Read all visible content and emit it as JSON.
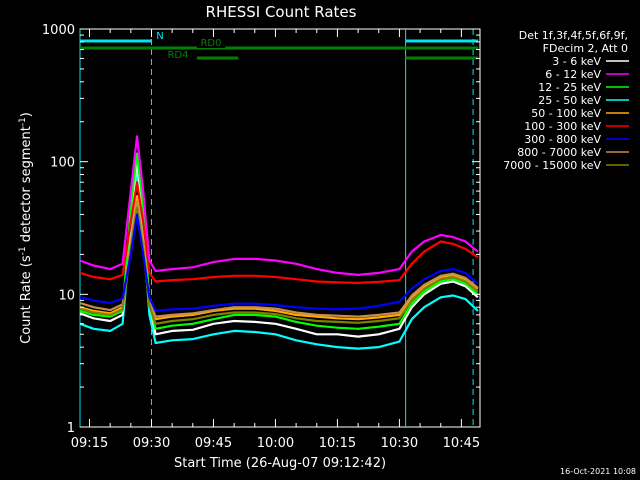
{
  "chart_data": {
    "type": "line",
    "title": "RHESSI Count Rates",
    "xlabel": "Start Time (26-Aug-07 09:12:42)",
    "ylabel_prefix": "Count Rate (s",
    "ylabel_sup": "-1",
    "ylabel_suffix": " detector segment",
    "ylabel_sup2": "-1",
    "ylabel_close": ")",
    "y_scale": "log",
    "ylim": [
      1,
      1000
    ],
    "xlim": [
      "09:12:42",
      "10:49:30"
    ],
    "x_ticks": [
      "09:15",
      "09:30",
      "09:45",
      "10:00",
      "10:15",
      "10:30",
      "10:45"
    ],
    "y_ticks": [
      {
        "value": 1,
        "label": "1"
      },
      {
        "value": 10,
        "label": "10"
      },
      {
        "value": 100,
        "label": "100"
      },
      {
        "value": 1000,
        "label": "1000"
      }
    ],
    "legend_title_1": "Det 1f,3f,4f,5f,6f,9f,",
    "legend_title_2": "FDecim 2, Att 0",
    "legend_position": "right",
    "timestamp": "16-Oct-2021 10:08",
    "flags": [
      {
        "label": "N",
        "color": "#00e5ee",
        "segments": [
          [
            "09:12:42",
            "09:30:00"
          ],
          [
            "10:31:30",
            "10:49:00"
          ]
        ]
      },
      {
        "label": "RD0",
        "color": "#008000",
        "segments": [
          [
            "09:12:42",
            "10:31:30"
          ],
          [
            "10:31:30",
            "10:49:00"
          ]
        ]
      },
      {
        "label": "RD4",
        "color": "#008000",
        "segments": [
          [
            "09:41:00",
            "09:51:00"
          ],
          [
            "10:31:30",
            "10:49:00"
          ]
        ]
      }
    ],
    "vertical_markers": [
      {
        "time": "09:12:42",
        "style": "solid"
      },
      {
        "time": "09:30:00",
        "style": "dashed"
      },
      {
        "time": "10:31:30",
        "style": "solid"
      },
      {
        "time": "10:47:50",
        "style": "dashed"
      }
    ],
    "x": [
      "09:12:42",
      "09:16:00",
      "09:20:00",
      "09:23:00",
      "09:25:00",
      "09:26:30",
      "09:28:00",
      "09:29:30",
      "09:31:00",
      "09:35:00",
      "09:40:00",
      "09:45:00",
      "09:50:00",
      "09:55:00",
      "10:00:00",
      "10:05:00",
      "10:10:00",
      "10:15:00",
      "10:20:00",
      "10:25:00",
      "10:30:00",
      "10:33:00",
      "10:36:00",
      "10:40:00",
      "10:43:00",
      "10:46:00",
      "10:49:00"
    ],
    "series": [
      {
        "name": "3 - 6 keV",
        "color": "#ffffff",
        "values": [
          7.2,
          6.6,
          6.3,
          7.0,
          40,
          100,
          40,
          8.5,
          5.0,
          5.3,
          5.4,
          6.0,
          6.3,
          6.2,
          6.0,
          5.5,
          5.0,
          5.0,
          4.8,
          5.0,
          5.5,
          8.0,
          10,
          12,
          12.5,
          11.5,
          9.5
        ]
      },
      {
        "name": "6 - 12 keV",
        "color": "#ff00ff",
        "values": [
          18,
          16.5,
          15.5,
          17,
          60,
          155,
          60,
          18,
          15,
          15.5,
          16,
          17.5,
          18.5,
          18.5,
          18,
          17,
          15.5,
          14.5,
          14,
          14.5,
          15.5,
          21,
          25,
          28,
          27,
          25,
          21
        ]
      },
      {
        "name": "12 - 25 keV",
        "color": "#00ff00",
        "values": [
          7.5,
          7.0,
          6.8,
          7.5,
          45,
          115,
          45,
          8.5,
          5.5,
          5.8,
          6.0,
          6.5,
          7.0,
          7.0,
          6.8,
          6.2,
          5.8,
          5.6,
          5.5,
          5.7,
          6.0,
          8.5,
          10.5,
          12.5,
          13,
          12,
          10
        ]
      },
      {
        "name": "25 - 50 keV",
        "color": "#00ffff",
        "values": [
          6.0,
          5.5,
          5.3,
          6.0,
          30,
          80,
          30,
          7.0,
          4.3,
          4.5,
          4.6,
          5.0,
          5.3,
          5.2,
          5.0,
          4.5,
          4.2,
          4.0,
          3.9,
          4.0,
          4.4,
          6.5,
          8.0,
          9.5,
          9.8,
          9.2,
          7.5
        ]
      },
      {
        "name": "50 - 100 keV",
        "color": "#ffaa00",
        "values": [
          8.0,
          7.5,
          7.2,
          8.0,
          25,
          55,
          25,
          9.0,
          6.5,
          6.8,
          7.0,
          7.5,
          7.8,
          7.8,
          7.5,
          7.0,
          6.8,
          6.6,
          6.5,
          6.7,
          7.0,
          9.5,
          11.5,
          13.5,
          14,
          13,
          11
        ]
      },
      {
        "name": "100 - 300 keV",
        "color": "#ff0000",
        "values": [
          14.5,
          13.5,
          13.0,
          14,
          35,
          70,
          35,
          14.5,
          12.5,
          12.8,
          13,
          13.5,
          13.8,
          13.8,
          13.5,
          13,
          12.5,
          12.3,
          12.2,
          12.4,
          12.8,
          17,
          21,
          25,
          24,
          22,
          19
        ]
      },
      {
        "name": "300 - 800 keV",
        "color": "#0000ff",
        "values": [
          9.5,
          9.0,
          8.6,
          9.3,
          20,
          40,
          20,
          9.5,
          7.5,
          7.7,
          7.8,
          8.2,
          8.5,
          8.5,
          8.3,
          8.0,
          7.8,
          7.7,
          7.8,
          8.2,
          8.8,
          11,
          13,
          15,
          15.5,
          14.5,
          12
        ]
      },
      {
        "name": "800 - 7000 keV",
        "color": "#c88c50",
        "values": [
          8.6,
          8.0,
          7.6,
          8.4,
          24,
          50,
          24,
          8.8,
          6.8,
          7.0,
          7.2,
          7.6,
          8.0,
          8.0,
          7.8,
          7.3,
          7.0,
          6.9,
          6.8,
          7.0,
          7.3,
          9.8,
          11.8,
          13.8,
          14.3,
          13.3,
          11.2
        ]
      },
      {
        "name": "7000 - 15000 keV",
        "color": "#808000",
        "values": [
          7.8,
          7.3,
          7.0,
          7.7,
          22,
          45,
          22,
          8.2,
          6.0,
          6.3,
          6.5,
          7.0,
          7.3,
          7.3,
          7.1,
          6.6,
          6.3,
          6.2,
          6.1,
          6.3,
          6.6,
          9.0,
          11,
          13,
          13.5,
          12.5,
          10.5
        ]
      }
    ]
  }
}
